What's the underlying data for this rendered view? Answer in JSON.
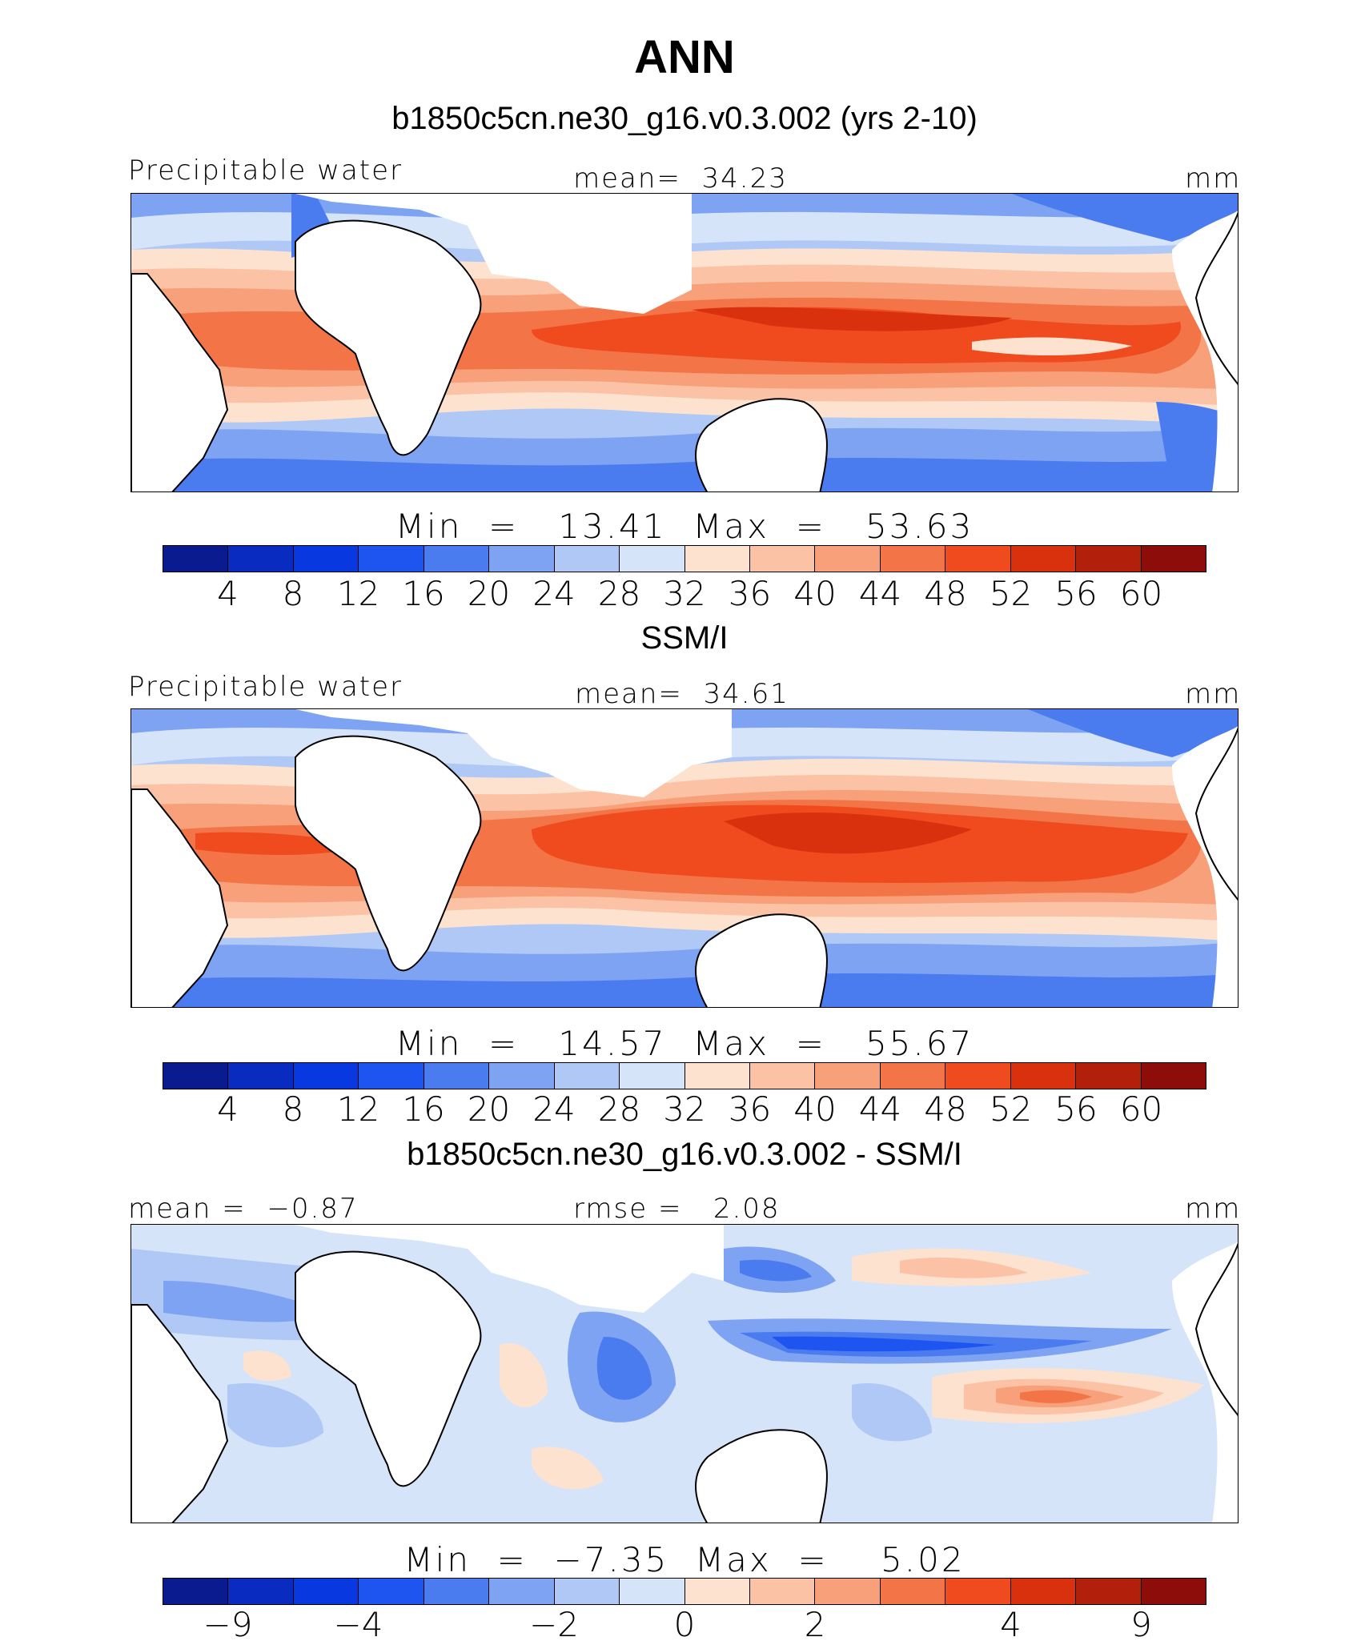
{
  "figure": {
    "title": "ANN",
    "palette": [
      "#0a1a8f",
      "#0a2bbf",
      "#0838e0",
      "#1e55f0",
      "#4a7cf0",
      "#7ea3f2",
      "#b0c8f6",
      "#d6e4fa",
      "#fde3cf",
      "#fbc2a5",
      "#f7a07a",
      "#f37447",
      "#ef4b1f",
      "#d9300e",
      "#b2200c",
      "#8c0d0a"
    ],
    "panels": [
      {
        "subtitle": "b1850c5cn.ne30_g16.v0.3.002 (yrs 2-10)",
        "left_label": "Precipitable water",
        "center_label": "mean=  34.23",
        "right_label": "mm",
        "minmax": "Min  =   13.41  Max  =   53.63",
        "ticks": [
          "4",
          "8",
          "12",
          "16",
          "20",
          "24",
          "28",
          "32",
          "36",
          "40",
          "44",
          "48",
          "52",
          "56",
          "60"
        ]
      },
      {
        "subtitle": "SSM/I",
        "left_label": "Precipitable water",
        "center_label": "mean=  34.61",
        "right_label": "mm",
        "minmax": "Min  =   14.57  Max  =   55.67",
        "ticks": [
          "4",
          "8",
          "12",
          "16",
          "20",
          "24",
          "28",
          "32",
          "36",
          "40",
          "44",
          "48",
          "52",
          "56",
          "60"
        ]
      },
      {
        "subtitle": "b1850c5cn.ne30_g16.v0.3.002 - SSM/I",
        "left_label": "mean =  −0.87",
        "center_label": "rmse =   2.08",
        "right_label": "mm",
        "minmax": "Min  =  −7.35  Max  =    5.02",
        "ticks": [
          "−9",
          "−4",
          "−2",
          "0",
          "2",
          "4",
          "9"
        ]
      }
    ]
  }
}
